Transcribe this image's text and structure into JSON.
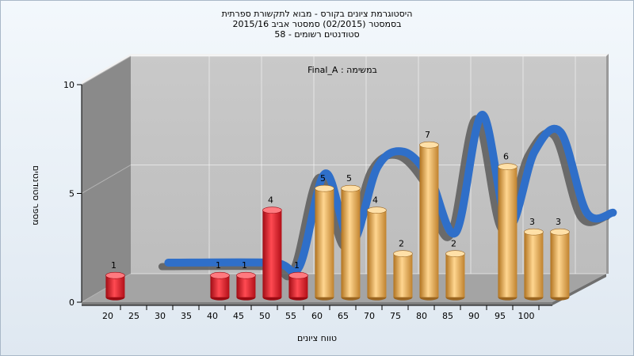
{
  "titles": {
    "line1": "היסטוגרמת ציונים בקורס - מבוא לתקשורת ספרתית",
    "line2": "בסמסטר  (02/2015)  סמסטר אביב 2015/16",
    "line3": "סטודנטים רשומים - 58"
  },
  "chart_data": {
    "type": "bar",
    "title": "היסטוגרמת ציונים בקורס - מבוא לתקשורת ספרתית",
    "annotation": "במשימה : Final_A",
    "xlabel": "טווח ציונים",
    "ylabel": "מספר סטודנטים",
    "x_ticks": [
      "20",
      "25",
      "30",
      "35",
      "40",
      "45",
      "50",
      "55",
      "60",
      "65",
      "70",
      "75",
      "80",
      "85",
      "90",
      "95",
      "100"
    ],
    "y_ticks": [
      "0",
      "5",
      "10"
    ],
    "ylim": [
      0,
      10
    ],
    "grid": true,
    "bars": [
      {
        "x": 20,
        "value": 1,
        "label": "1",
        "color": "red"
      },
      {
        "x": 40,
        "value": 1,
        "label": "1",
        "color": "red"
      },
      {
        "x": 45,
        "value": 1,
        "label": "1",
        "color": "red"
      },
      {
        "x": 50,
        "value": 4,
        "label": "4",
        "color": "red"
      },
      {
        "x": 55,
        "value": 1,
        "label": "1",
        "color": "red"
      },
      {
        "x": 60,
        "value": 5,
        "label": "5",
        "color": "orange"
      },
      {
        "x": 65,
        "value": 5,
        "label": "5",
        "color": "orange"
      },
      {
        "x": 70,
        "value": 4,
        "label": "4",
        "color": "orange"
      },
      {
        "x": 75,
        "value": 2,
        "label": "2",
        "color": "orange"
      },
      {
        "x": 80,
        "value": 7,
        "label": "7",
        "color": "orange"
      },
      {
        "x": 85,
        "value": 2,
        "label": "2",
        "color": "orange"
      },
      {
        "x": 95,
        "value": 6,
        "label": "6",
        "color": "orange"
      },
      {
        "x": 100,
        "value": 3,
        "label": "3",
        "color": "orange"
      },
      {
        "x": 105,
        "value": 3,
        "label": "3",
        "color": "orange"
      }
    ],
    "curve": [
      {
        "x": 25,
        "y": 0.9
      },
      {
        "x": 45,
        "y": 0.9
      },
      {
        "x": 50,
        "y": 0.7
      },
      {
        "x": 55,
        "y": 5.0
      },
      {
        "x": 60,
        "y": 1.8
      },
      {
        "x": 65,
        "y": 5.3
      },
      {
        "x": 70,
        "y": 6.0
      },
      {
        "x": 75,
        "y": 4.8
      },
      {
        "x": 80,
        "y": 2.3
      },
      {
        "x": 85,
        "y": 7.7
      },
      {
        "x": 90,
        "y": 2.6
      },
      {
        "x": 95,
        "y": 6.0
      },
      {
        "x": 100,
        "y": 6.9
      },
      {
        "x": 105,
        "y": 3.2
      },
      {
        "x": 110,
        "y": 3.2
      }
    ],
    "colors": {
      "red": "#e0202a",
      "red_dark": "#9a0a12",
      "red_light": "#ff7a7f",
      "orange": "#e7a54a",
      "orange_dark": "#9a6520",
      "orange_light": "#ffe0a8",
      "curve": "#2f6fc9",
      "curve_shadow": "#5a5a5a",
      "back_wall": "#c6c6c6",
      "left_wall": "#8a8a8a",
      "floor": "#a4a4a4",
      "grid": "#ffffff"
    }
  }
}
